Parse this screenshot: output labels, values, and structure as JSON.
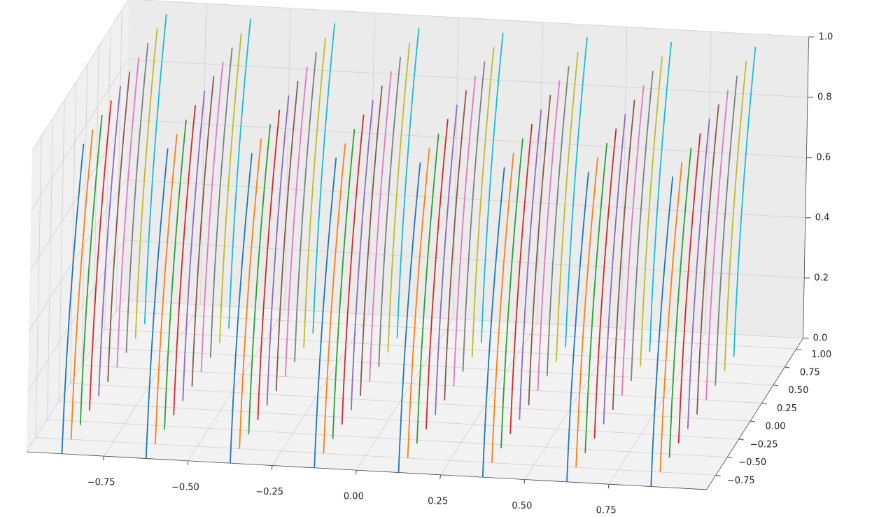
{
  "chart_data": {
    "type": "line3d",
    "xlim": [
      -0.98,
      1.04
    ],
    "ylim": [
      -0.95,
      1.15
    ],
    "zlim": [
      0,
      1
    ],
    "xticks": [
      {
        "value": -0.75,
        "label": "−0.75"
      },
      {
        "value": -0.5,
        "label": "−0.50"
      },
      {
        "value": -0.25,
        "label": "−0.25"
      },
      {
        "value": 0,
        "label": "0.00"
      },
      {
        "value": 0.25,
        "label": "0.25"
      },
      {
        "value": 0.5,
        "label": "0.50"
      },
      {
        "value": 0.75,
        "label": "0.75"
      }
    ],
    "yticks": [
      {
        "value": -0.75,
        "label": "−0.75"
      },
      {
        "value": -0.5,
        "label": "−0.50"
      },
      {
        "value": -0.25,
        "label": "−0.25"
      },
      {
        "value": 0,
        "label": "0.00"
      },
      {
        "value": 0.25,
        "label": "0.25"
      },
      {
        "value": 0.5,
        "label": "0.50"
      },
      {
        "value": 0.75,
        "label": "0.75"
      },
      {
        "value": 1,
        "label": "1.00"
      }
    ],
    "zticks": [
      {
        "value": 0,
        "label": "0.0"
      },
      {
        "value": 0.2,
        "label": "0.2"
      },
      {
        "value": 0.4,
        "label": "0.4"
      },
      {
        "value": 0.6,
        "label": "0.6"
      },
      {
        "value": 0.8,
        "label": "0.8"
      },
      {
        "value": 1,
        "label": "1.0"
      }
    ],
    "grid": true,
    "colors": [
      "#1f77b4",
      "#ff7f0e",
      "#2ca02c",
      "#d62728",
      "#9467bd",
      "#8c564b",
      "#e377c2",
      "#7f7f7f",
      "#bcbd22",
      "#17becf"
    ],
    "z": [
      0,
      0.5,
      1
    ],
    "series": [
      {
        "x": [
          -0.875,
          -0.865,
          -0.845
        ],
        "y": [
          -0.95,
          -0.9,
          -0.82
        ]
      },
      {
        "x": [
          -0.875,
          -0.865,
          -0.845
        ],
        "y": [
          -0.75,
          -0.7,
          -0.62
        ]
      },
      {
        "x": [
          -0.875,
          -0.865,
          -0.845
        ],
        "y": [
          -0.55,
          -0.5,
          -0.42
        ]
      },
      {
        "x": [
          -0.875,
          -0.865,
          -0.845
        ],
        "y": [
          -0.35,
          -0.3,
          -0.22
        ]
      },
      {
        "x": [
          -0.875,
          -0.865,
          -0.845
        ],
        "y": [
          -0.15,
          -0.1,
          -0.02
        ]
      },
      {
        "x": [
          -0.875,
          -0.865,
          -0.845
        ],
        "y": [
          0.05,
          0.1,
          0.18
        ]
      },
      {
        "x": [
          -0.875,
          -0.865,
          -0.845
        ],
        "y": [
          0.25,
          0.3,
          0.38
        ]
      },
      {
        "x": [
          -0.875,
          -0.865,
          -0.845
        ],
        "y": [
          0.45,
          0.5,
          0.58
        ]
      },
      {
        "x": [
          -0.875,
          -0.865,
          -0.845
        ],
        "y": [
          0.65,
          0.7,
          0.78
        ]
      },
      {
        "x": [
          -0.875,
          -0.865,
          -0.845
        ],
        "y": [
          0.85,
          0.9,
          0.98
        ]
      },
      {
        "x": [
          -0.625,
          -0.615,
          -0.595
        ],
        "y": [
          -0.95,
          -0.9,
          -0.82
        ]
      },
      {
        "x": [
          -0.625,
          -0.615,
          -0.595
        ],
        "y": [
          -0.75,
          -0.7,
          -0.62
        ]
      },
      {
        "x": [
          -0.625,
          -0.615,
          -0.595
        ],
        "y": [
          -0.55,
          -0.5,
          -0.42
        ]
      },
      {
        "x": [
          -0.625,
          -0.615,
          -0.595
        ],
        "y": [
          -0.35,
          -0.3,
          -0.22
        ]
      },
      {
        "x": [
          -0.625,
          -0.615,
          -0.595
        ],
        "y": [
          -0.15,
          -0.1,
          -0.02
        ]
      },
      {
        "x": [
          -0.625,
          -0.615,
          -0.595
        ],
        "y": [
          0.05,
          0.1,
          0.18
        ]
      },
      {
        "x": [
          -0.625,
          -0.615,
          -0.595
        ],
        "y": [
          0.25,
          0.3,
          0.38
        ]
      },
      {
        "x": [
          -0.625,
          -0.615,
          -0.595
        ],
        "y": [
          0.45,
          0.5,
          0.58
        ]
      },
      {
        "x": [
          -0.625,
          -0.615,
          -0.595
        ],
        "y": [
          0.65,
          0.7,
          0.78
        ]
      },
      {
        "x": [
          -0.625,
          -0.615,
          -0.595
        ],
        "y": [
          0.85,
          0.9,
          0.98
        ]
      },
      {
        "x": [
          -0.375,
          -0.365,
          -0.345
        ],
        "y": [
          -0.95,
          -0.9,
          -0.82
        ]
      },
      {
        "x": [
          -0.375,
          -0.365,
          -0.345
        ],
        "y": [
          -0.75,
          -0.7,
          -0.62
        ]
      },
      {
        "x": [
          -0.375,
          -0.365,
          -0.345
        ],
        "y": [
          -0.55,
          -0.5,
          -0.42
        ]
      },
      {
        "x": [
          -0.375,
          -0.365,
          -0.345
        ],
        "y": [
          -0.35,
          -0.3,
          -0.22
        ]
      },
      {
        "x": [
          -0.375,
          -0.365,
          -0.345
        ],
        "y": [
          -0.15,
          -0.1,
          -0.02
        ]
      },
      {
        "x": [
          -0.375,
          -0.365,
          -0.345
        ],
        "y": [
          0.05,
          0.1,
          0.18
        ]
      },
      {
        "x": [
          -0.375,
          -0.365,
          -0.345
        ],
        "y": [
          0.25,
          0.3,
          0.38
        ]
      },
      {
        "x": [
          -0.375,
          -0.365,
          -0.345
        ],
        "y": [
          0.45,
          0.5,
          0.58
        ]
      },
      {
        "x": [
          -0.375,
          -0.365,
          -0.345
        ],
        "y": [
          0.65,
          0.7,
          0.78
        ]
      },
      {
        "x": [
          -0.375,
          -0.365,
          -0.345
        ],
        "y": [
          0.85,
          0.9,
          0.98
        ]
      },
      {
        "x": [
          -0.125,
          -0.115,
          -0.095
        ],
        "y": [
          -0.95,
          -0.9,
          -0.82
        ]
      },
      {
        "x": [
          -0.125,
          -0.115,
          -0.095
        ],
        "y": [
          -0.75,
          -0.7,
          -0.62
        ]
      },
      {
        "x": [
          -0.125,
          -0.115,
          -0.095
        ],
        "y": [
          -0.55,
          -0.5,
          -0.42
        ]
      },
      {
        "x": [
          -0.125,
          -0.115,
          -0.095
        ],
        "y": [
          -0.35,
          -0.3,
          -0.22
        ]
      },
      {
        "x": [
          -0.125,
          -0.115,
          -0.095
        ],
        "y": [
          -0.15,
          -0.1,
          -0.02
        ]
      },
      {
        "x": [
          -0.125,
          -0.115,
          -0.095
        ],
        "y": [
          0.05,
          0.1,
          0.18
        ]
      },
      {
        "x": [
          -0.125,
          -0.115,
          -0.095
        ],
        "y": [
          0.25,
          0.3,
          0.38
        ]
      },
      {
        "x": [
          -0.125,
          -0.115,
          -0.095
        ],
        "y": [
          0.45,
          0.5,
          0.58
        ]
      },
      {
        "x": [
          -0.125,
          -0.115,
          -0.095
        ],
        "y": [
          0.65,
          0.7,
          0.78
        ]
      },
      {
        "x": [
          -0.125,
          -0.115,
          -0.095
        ],
        "y": [
          0.85,
          0.9,
          0.98
        ]
      },
      {
        "x": [
          0.125,
          0.135,
          0.155
        ],
        "y": [
          -0.95,
          -0.9,
          -0.82
        ]
      },
      {
        "x": [
          0.125,
          0.135,
          0.155
        ],
        "y": [
          -0.75,
          -0.7,
          -0.62
        ]
      },
      {
        "x": [
          0.125,
          0.135,
          0.155
        ],
        "y": [
          -0.55,
          -0.5,
          -0.42
        ]
      },
      {
        "x": [
          0.125,
          0.135,
          0.155
        ],
        "y": [
          -0.35,
          -0.3,
          -0.22
        ]
      },
      {
        "x": [
          0.125,
          0.135,
          0.155
        ],
        "y": [
          -0.15,
          -0.1,
          -0.02
        ]
      },
      {
        "x": [
          0.125,
          0.135,
          0.155
        ],
        "y": [
          0.05,
          0.1,
          0.18
        ]
      },
      {
        "x": [
          0.125,
          0.135,
          0.155
        ],
        "y": [
          0.25,
          0.3,
          0.38
        ]
      },
      {
        "x": [
          0.125,
          0.135,
          0.155
        ],
        "y": [
          0.45,
          0.5,
          0.58
        ]
      },
      {
        "x": [
          0.125,
          0.135,
          0.155
        ],
        "y": [
          0.65,
          0.7,
          0.78
        ]
      },
      {
        "x": [
          0.125,
          0.135,
          0.155
        ],
        "y": [
          0.85,
          0.9,
          0.98
        ]
      },
      {
        "x": [
          0.375,
          0.385,
          0.405
        ],
        "y": [
          -0.95,
          -0.9,
          -0.82
        ]
      },
      {
        "x": [
          0.375,
          0.385,
          0.405
        ],
        "y": [
          -0.75,
          -0.7,
          -0.62
        ]
      },
      {
        "x": [
          0.375,
          0.385,
          0.405
        ],
        "y": [
          -0.55,
          -0.5,
          -0.42
        ]
      },
      {
        "x": [
          0.375,
          0.385,
          0.405
        ],
        "y": [
          -0.35,
          -0.3,
          -0.22
        ]
      },
      {
        "x": [
          0.375,
          0.385,
          0.405
        ],
        "y": [
          -0.15,
          -0.1,
          -0.02
        ]
      },
      {
        "x": [
          0.375,
          0.385,
          0.405
        ],
        "y": [
          0.05,
          0.1,
          0.18
        ]
      },
      {
        "x": [
          0.375,
          0.385,
          0.405
        ],
        "y": [
          0.25,
          0.3,
          0.38
        ]
      },
      {
        "x": [
          0.375,
          0.385,
          0.405
        ],
        "y": [
          0.45,
          0.5,
          0.58
        ]
      },
      {
        "x": [
          0.375,
          0.385,
          0.405
        ],
        "y": [
          0.65,
          0.7,
          0.78
        ]
      },
      {
        "x": [
          0.375,
          0.385,
          0.405
        ],
        "y": [
          0.85,
          0.9,
          0.98
        ]
      },
      {
        "x": [
          0.625,
          0.635,
          0.655
        ],
        "y": [
          -0.95,
          -0.9,
          -0.82
        ]
      },
      {
        "x": [
          0.625,
          0.635,
          0.655
        ],
        "y": [
          -0.75,
          -0.7,
          -0.62
        ]
      },
      {
        "x": [
          0.625,
          0.635,
          0.655
        ],
        "y": [
          -0.55,
          -0.5,
          -0.42
        ]
      },
      {
        "x": [
          0.625,
          0.635,
          0.655
        ],
        "y": [
          -0.35,
          -0.3,
          -0.22
        ]
      },
      {
        "x": [
          0.625,
          0.635,
          0.655
        ],
        "y": [
          -0.15,
          -0.1,
          -0.02
        ]
      },
      {
        "x": [
          0.625,
          0.635,
          0.655
        ],
        "y": [
          0.05,
          0.1,
          0.18
        ]
      },
      {
        "x": [
          0.625,
          0.635,
          0.655
        ],
        "y": [
          0.25,
          0.3,
          0.38
        ]
      },
      {
        "x": [
          0.625,
          0.635,
          0.655
        ],
        "y": [
          0.45,
          0.5,
          0.58
        ]
      },
      {
        "x": [
          0.625,
          0.635,
          0.655
        ],
        "y": [
          0.65,
          0.7,
          0.78
        ]
      },
      {
        "x": [
          0.625,
          0.635,
          0.655
        ],
        "y": [
          0.85,
          0.9,
          0.98
        ]
      },
      {
        "x": [
          0.875,
          0.885,
          0.905
        ],
        "y": [
          -0.95,
          -0.9,
          -0.82
        ]
      },
      {
        "x": [
          0.875,
          0.885,
          0.905
        ],
        "y": [
          -0.75,
          -0.7,
          -0.62
        ]
      },
      {
        "x": [
          0.875,
          0.885,
          0.905
        ],
        "y": [
          -0.55,
          -0.5,
          -0.42
        ]
      },
      {
        "x": [
          0.875,
          0.885,
          0.905
        ],
        "y": [
          -0.35,
          -0.3,
          -0.22
        ]
      },
      {
        "x": [
          0.875,
          0.885,
          0.905
        ],
        "y": [
          -0.15,
          -0.1,
          -0.02
        ]
      },
      {
        "x": [
          0.875,
          0.885,
          0.905
        ],
        "y": [
          0.05,
          0.1,
          0.18
        ]
      },
      {
        "x": [
          0.875,
          0.885,
          0.905
        ],
        "y": [
          0.25,
          0.3,
          0.38
        ]
      },
      {
        "x": [
          0.875,
          0.885,
          0.905
        ],
        "y": [
          0.45,
          0.5,
          0.58
        ]
      },
      {
        "x": [
          0.875,
          0.885,
          0.905
        ],
        "y": [
          0.65,
          0.7,
          0.78
        ]
      },
      {
        "x": [
          0.875,
          0.885,
          0.905
        ],
        "y": [
          0.85,
          0.9,
          0.98
        ]
      }
    ]
  }
}
